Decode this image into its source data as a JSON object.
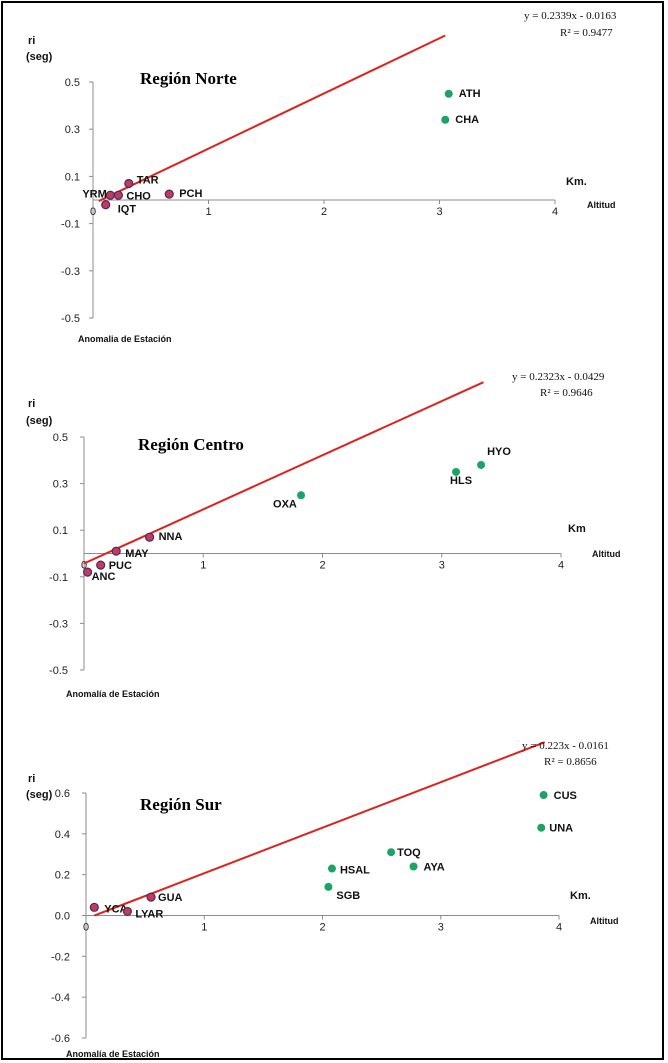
{
  "chart_data": [
    {
      "type": "scatter",
      "title": "Región Norte",
      "ylabel_line1": "ri",
      "ylabel_line2": "(seg)",
      "xunit": "Km.",
      "xlabel": "Altitud",
      "footer": "Anomalia de Estación",
      "equation": "y = 0.2339x - 0.0163",
      "r2": "R² = 0.9477",
      "xlim": [
        0,
        4
      ],
      "ylim": [
        -0.5,
        0.5
      ],
      "xticks": [
        "0",
        "1",
        "2",
        "3",
        "4"
      ],
      "yticks": [
        0.5,
        0.3,
        0.1,
        -0.1,
        -0.3,
        -0.5
      ],
      "ytick_labels": [
        "0.5",
        "0.3",
        "0.1",
        "-0.1",
        "-0.3",
        "-0.5"
      ],
      "trendline": {
        "slope": 0.2339,
        "intercept": -0.0163,
        "x_range": [
          0.05,
          3.05
        ],
        "color": "#e0201b"
      },
      "points": [
        {
          "label": "ATH",
          "x": 3.08,
          "y": 0.45,
          "color": "#1aa365"
        },
        {
          "label": "CHA",
          "x": 3.05,
          "y": 0.34,
          "color": "#1aa365"
        },
        {
          "label": "TAR",
          "x": 0.31,
          "y": 0.07,
          "color": "#c33b57"
        },
        {
          "label": "YRM",
          "x": 0.15,
          "y": 0.02,
          "color": "#c33b57"
        },
        {
          "label": "CHO",
          "x": 0.22,
          "y": 0.02,
          "color": "#c33b57"
        },
        {
          "label": "PCH",
          "x": 0.66,
          "y": 0.025,
          "color": "#c33b57"
        },
        {
          "label": "IQT",
          "x": 0.11,
          "y": -0.02,
          "color": "#c33b57"
        }
      ]
    },
    {
      "type": "scatter",
      "title": "Región Centro",
      "ylabel_line1": "ri",
      "ylabel_line2": "(seg)",
      "xunit": "Km",
      "xlabel": "Altitud",
      "footer": "Anomalía de Estación",
      "equation": "y = 0.2323x - 0.0429",
      "r2": "R² = 0.9646",
      "xlim": [
        0,
        4
      ],
      "ylim": [
        -0.5,
        0.5
      ],
      "xticks": [
        "0",
        "1",
        "2",
        "3",
        "4"
      ],
      "yticks": [
        0.5,
        0.3,
        0.1,
        -0.1,
        -0.3,
        -0.5
      ],
      "ytick_labels": [
        "0.5",
        "0.3",
        "0.1",
        "-0.1",
        "-0.3",
        "-0.5"
      ],
      "trendline": {
        "slope": 0.2323,
        "intercept": -0.0429,
        "x_range": [
          0.0,
          3.35
        ],
        "color": "#e0201b"
      },
      "points": [
        {
          "label": "HYO",
          "x": 3.33,
          "y": 0.38,
          "color": "#1aa365"
        },
        {
          "label": "HLS",
          "x": 3.12,
          "y": 0.35,
          "color": "#1aa365"
        },
        {
          "label": "OXA",
          "x": 1.82,
          "y": 0.25,
          "color": "#1aa365"
        },
        {
          "label": "NNA",
          "x": 0.55,
          "y": 0.07,
          "color": "#c33b57"
        },
        {
          "label": "MAY",
          "x": 0.27,
          "y": 0.01,
          "color": "#c33b57"
        },
        {
          "label": "PUC",
          "x": 0.14,
          "y": -0.05,
          "color": "#c33b57"
        },
        {
          "label": "ANC",
          "x": 0.03,
          "y": -0.08,
          "color": "#c33b57"
        }
      ]
    },
    {
      "type": "scatter",
      "title": "Región Sur",
      "ylabel_line1": "ri",
      "ylabel_line2": "(seg)",
      "xunit": "Km.",
      "xlabel": "Altitud",
      "footer": "Anomalía de Estación",
      "equation": "y = 0.223x - 0.0161",
      "r2": "R² = 0.8656",
      "xlim": [
        0,
        4
      ],
      "ylim": [
        -0.6,
        0.6
      ],
      "xticks": [
        "0",
        "1",
        "2",
        "3",
        "4"
      ],
      "yticks": [
        0.6,
        0.4,
        0.2,
        0.0,
        -0.2,
        -0.4,
        -0.6
      ],
      "ytick_labels": [
        "0.6",
        "0.4",
        "0.2",
        "0.0",
        "-0.2",
        "-0.4",
        "-0.6"
      ],
      "trendline": {
        "slope": 0.223,
        "intercept": -0.0161,
        "x_range": [
          0.07,
          3.88
        ],
        "color": "#e0201b"
      },
      "points": [
        {
          "label": "CUS",
          "x": 3.87,
          "y": 0.59,
          "color": "#1aa365"
        },
        {
          "label": "UNA",
          "x": 3.85,
          "y": 0.43,
          "color": "#1aa365"
        },
        {
          "label": "TOQ",
          "x": 2.58,
          "y": 0.31,
          "color": "#1aa365"
        },
        {
          "label": "AYA",
          "x": 2.77,
          "y": 0.24,
          "color": "#1aa365"
        },
        {
          "label": "HSAL",
          "x": 2.08,
          "y": 0.23,
          "color": "#1aa365"
        },
        {
          "label": "SGB",
          "x": 2.05,
          "y": 0.14,
          "color": "#1aa365"
        },
        {
          "label": "GUA",
          "x": 0.55,
          "y": 0.09,
          "color": "#c33b57"
        },
        {
          "label": "YCA",
          "x": 0.07,
          "y": 0.04,
          "color": "#c33b57"
        },
        {
          "label": "LYAR",
          "x": 0.35,
          "y": 0.02,
          "color": "#c33b57"
        }
      ]
    }
  ]
}
